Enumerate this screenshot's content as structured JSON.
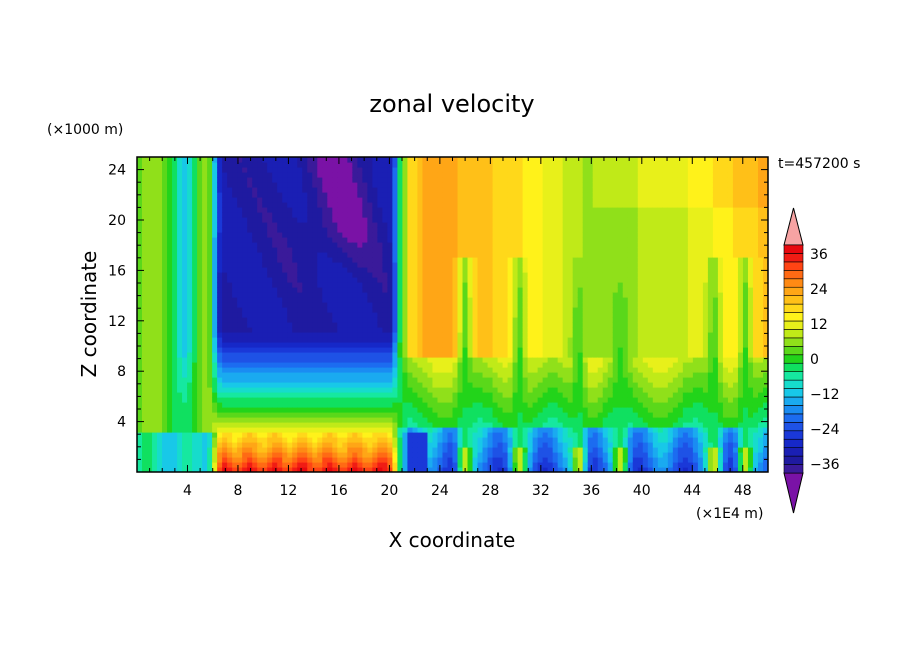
{
  "chart_data": {
    "type": "heatmap",
    "title": "zonal velocity",
    "xlabel": "X coordinate",
    "ylabel": "Z coordinate",
    "x_unit": "(×1E4 m)",
    "y_unit": "(×1000 m)",
    "time_label": "t=457200 s",
    "xlim": [
      0,
      50
    ],
    "ylim": [
      0,
      25
    ],
    "x_ticks": [
      "4",
      "8",
      "12",
      "16",
      "20",
      "24",
      "28",
      "32",
      "36",
      "40",
      "44",
      "48"
    ],
    "y_ticks": [
      "4",
      "8",
      "12",
      "16",
      "20",
      "24"
    ],
    "colorbar": {
      "levels": [
        -42,
        -39,
        -36,
        -33,
        -30,
        -27,
        -24,
        -21,
        -18,
        -15,
        -12,
        -9,
        -6,
        -3,
        0,
        3,
        6,
        9,
        12,
        15,
        18,
        21,
        24,
        27,
        30,
        33,
        36,
        39,
        42
      ],
      "colors": [
        "#7a12a6",
        "#3a1a9a",
        "#1f1aa0",
        "#1a1fb4",
        "#1628c8",
        "#1a38d8",
        "#1e52e6",
        "#1c6cf0",
        "#1a8cf2",
        "#1aaaf0",
        "#18c8e8",
        "#16dccc",
        "#16e8a0",
        "#10e060",
        "#22d41a",
        "#5ad81a",
        "#90e01a",
        "#c0ea18",
        "#e8f01a",
        "#fff21a",
        "#ffd81a",
        "#ffc018",
        "#ffa616",
        "#ff8a14",
        "#ff6a14",
        "#ff4414",
        "#f01c14",
        "#e8080e",
        "#f7a3a3"
      ],
      "tick_labels": [
        "36",
        "24",
        "12",
        "0",
        "−12",
        "−24",
        "−36"
      ],
      "tick_values": [
        36,
        24,
        12,
        0,
        -12,
        -24,
        -36
      ]
    },
    "regions": [
      {
        "x_range": [
          6,
          20.5
        ],
        "z_range": [
          11,
          25
        ],
        "u": -36,
        "desc": "strong westward jet aloft"
      },
      {
        "x_range": [
          6,
          20.5
        ],
        "z_range": [
          0,
          2.5
        ],
        "u": 36,
        "desc": "strong eastward flow near surface"
      },
      {
        "x_range": [
          21,
          50
        ],
        "z_range": [
          9,
          25
        ],
        "u": 18,
        "desc": "eastward flow aloft with streaks"
      },
      {
        "x_range": [
          21,
          50
        ],
        "z_range": [
          0,
          3
        ],
        "u": -21,
        "desc": "westward flow near surface"
      }
    ]
  }
}
